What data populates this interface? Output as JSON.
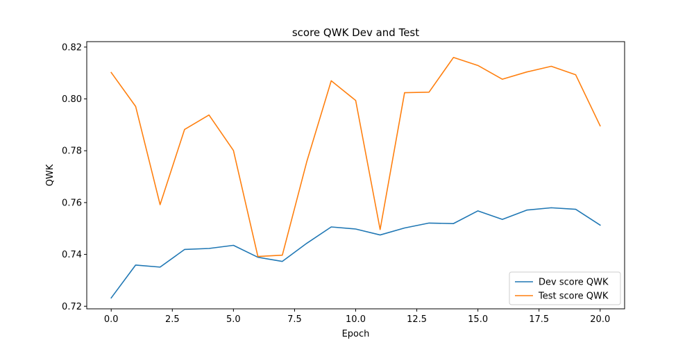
{
  "chart_data": {
    "type": "line",
    "title": "score QWK Dev and Test",
    "xlabel": "Epoch",
    "ylabel": "QWK",
    "x": [
      0,
      1,
      2,
      3,
      4,
      5,
      6,
      7,
      8,
      9,
      10,
      11,
      12,
      13,
      14,
      15,
      16,
      17,
      18,
      19,
      20
    ],
    "xlim": [
      -1,
      21
    ],
    "ylim": [
      0.719,
      0.8221
    ],
    "xticks": [
      0.0,
      2.5,
      5.0,
      7.5,
      10.0,
      12.5,
      15.0,
      17.5,
      20.0
    ],
    "xtick_labels": [
      "0.0",
      "2.5",
      "5.0",
      "7.5",
      "10.0",
      "12.5",
      "15.0",
      "17.5",
      "20.0"
    ],
    "yticks": [
      0.72,
      0.74,
      0.76,
      0.78,
      0.8,
      0.82
    ],
    "ytick_labels": [
      "0.72",
      "0.74",
      "0.76",
      "0.78",
      "0.80",
      "0.82"
    ],
    "grid": false,
    "legend_position": "bottom-right",
    "series": [
      {
        "name": "Dev score QWK",
        "color": "#1f77b4",
        "values": [
          0.7232,
          0.7359,
          0.7351,
          0.7419,
          0.7423,
          0.7435,
          0.7389,
          0.7373,
          0.7443,
          0.7506,
          0.7498,
          0.7475,
          0.7502,
          0.7521,
          0.7519,
          0.7568,
          0.7535,
          0.7571,
          0.758,
          0.7574,
          0.7513
        ]
      },
      {
        "name": "Test score QWK",
        "color": "#ff7f0e",
        "values": [
          0.8102,
          0.7971,
          0.7592,
          0.7882,
          0.7938,
          0.7801,
          0.7392,
          0.7397,
          0.7758,
          0.807,
          0.7994,
          0.7496,
          0.8024,
          0.8026,
          0.816,
          0.8129,
          0.8076,
          0.8104,
          0.8126,
          0.8093,
          0.7896
        ]
      }
    ]
  }
}
